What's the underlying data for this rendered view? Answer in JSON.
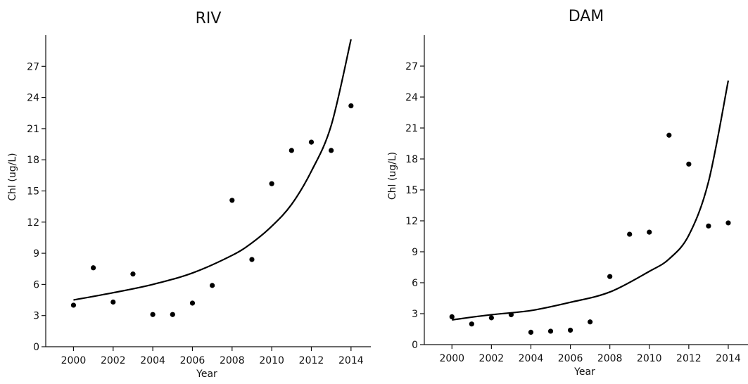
{
  "chart_data": [
    {
      "type": "scatter",
      "title": "RIV",
      "xlabel": "Year",
      "ylabel": "Chl (ug/L)",
      "xlim": [
        1998.6,
        2015.0
      ],
      "ylim": [
        0,
        30.0
      ],
      "x_ticks": [
        2000,
        2002,
        2004,
        2006,
        2008,
        2010,
        2012,
        2014
      ],
      "y_ticks": [
        0,
        3,
        6,
        9,
        12,
        15,
        18,
        21,
        24,
        27
      ],
      "series": [
        {
          "x": [
            2000,
            2001,
            2002,
            2003,
            2004,
            2005,
            2006,
            2007,
            2008,
            2009,
            2010,
            2011,
            2012,
            2013,
            2014
          ],
          "y": [
            4.0,
            7.6,
            4.3,
            7.0,
            3.1,
            3.1,
            4.2,
            5.9,
            14.1,
            8.4,
            15.7,
            18.9,
            19.7,
            18.9,
            23.2
          ]
        }
      ],
      "fit_curve": {
        "x": [
          2000,
          2002,
          2004,
          2006,
          2008,
          2009,
          2010,
          2011,
          2012,
          2013,
          2014
        ],
        "y": [
          4.5,
          5.2,
          6.0,
          7.1,
          8.8,
          10.0,
          11.6,
          13.7,
          16.9,
          21.3,
          29.6
        ]
      }
    },
    {
      "type": "scatter",
      "title": "DAM",
      "xlabel": "Year",
      "ylabel": "Chl (ug/L)",
      "xlim": [
        1998.6,
        2015.0
      ],
      "ylim": [
        0,
        30.0
      ],
      "x_ticks": [
        2000,
        2002,
        2004,
        2006,
        2008,
        2010,
        2012,
        2014
      ],
      "y_ticks": [
        0,
        3,
        6,
        9,
        12,
        15,
        18,
        21,
        24,
        27
      ],
      "series": [
        {
          "x": [
            2000,
            2001,
            2002,
            2003,
            2004,
            2005,
            2006,
            2007,
            2008,
            2009,
            2010,
            2011,
            2012,
            2013,
            2014
          ],
          "y": [
            2.7,
            2.0,
            2.6,
            2.9,
            1.2,
            1.3,
            1.4,
            2.2,
            6.6,
            10.7,
            10.9,
            20.3,
            17.5,
            11.5,
            11.8
          ]
        }
      ],
      "fit_curve": {
        "x": [
          2000,
          2002,
          2004,
          2006,
          2008,
          2010,
          2011,
          2012,
          2013,
          2014
        ],
        "y": [
          2.4,
          2.9,
          3.3,
          4.1,
          5.1,
          7.1,
          8.3,
          10.6,
          15.8,
          25.6
        ]
      }
    }
  ]
}
